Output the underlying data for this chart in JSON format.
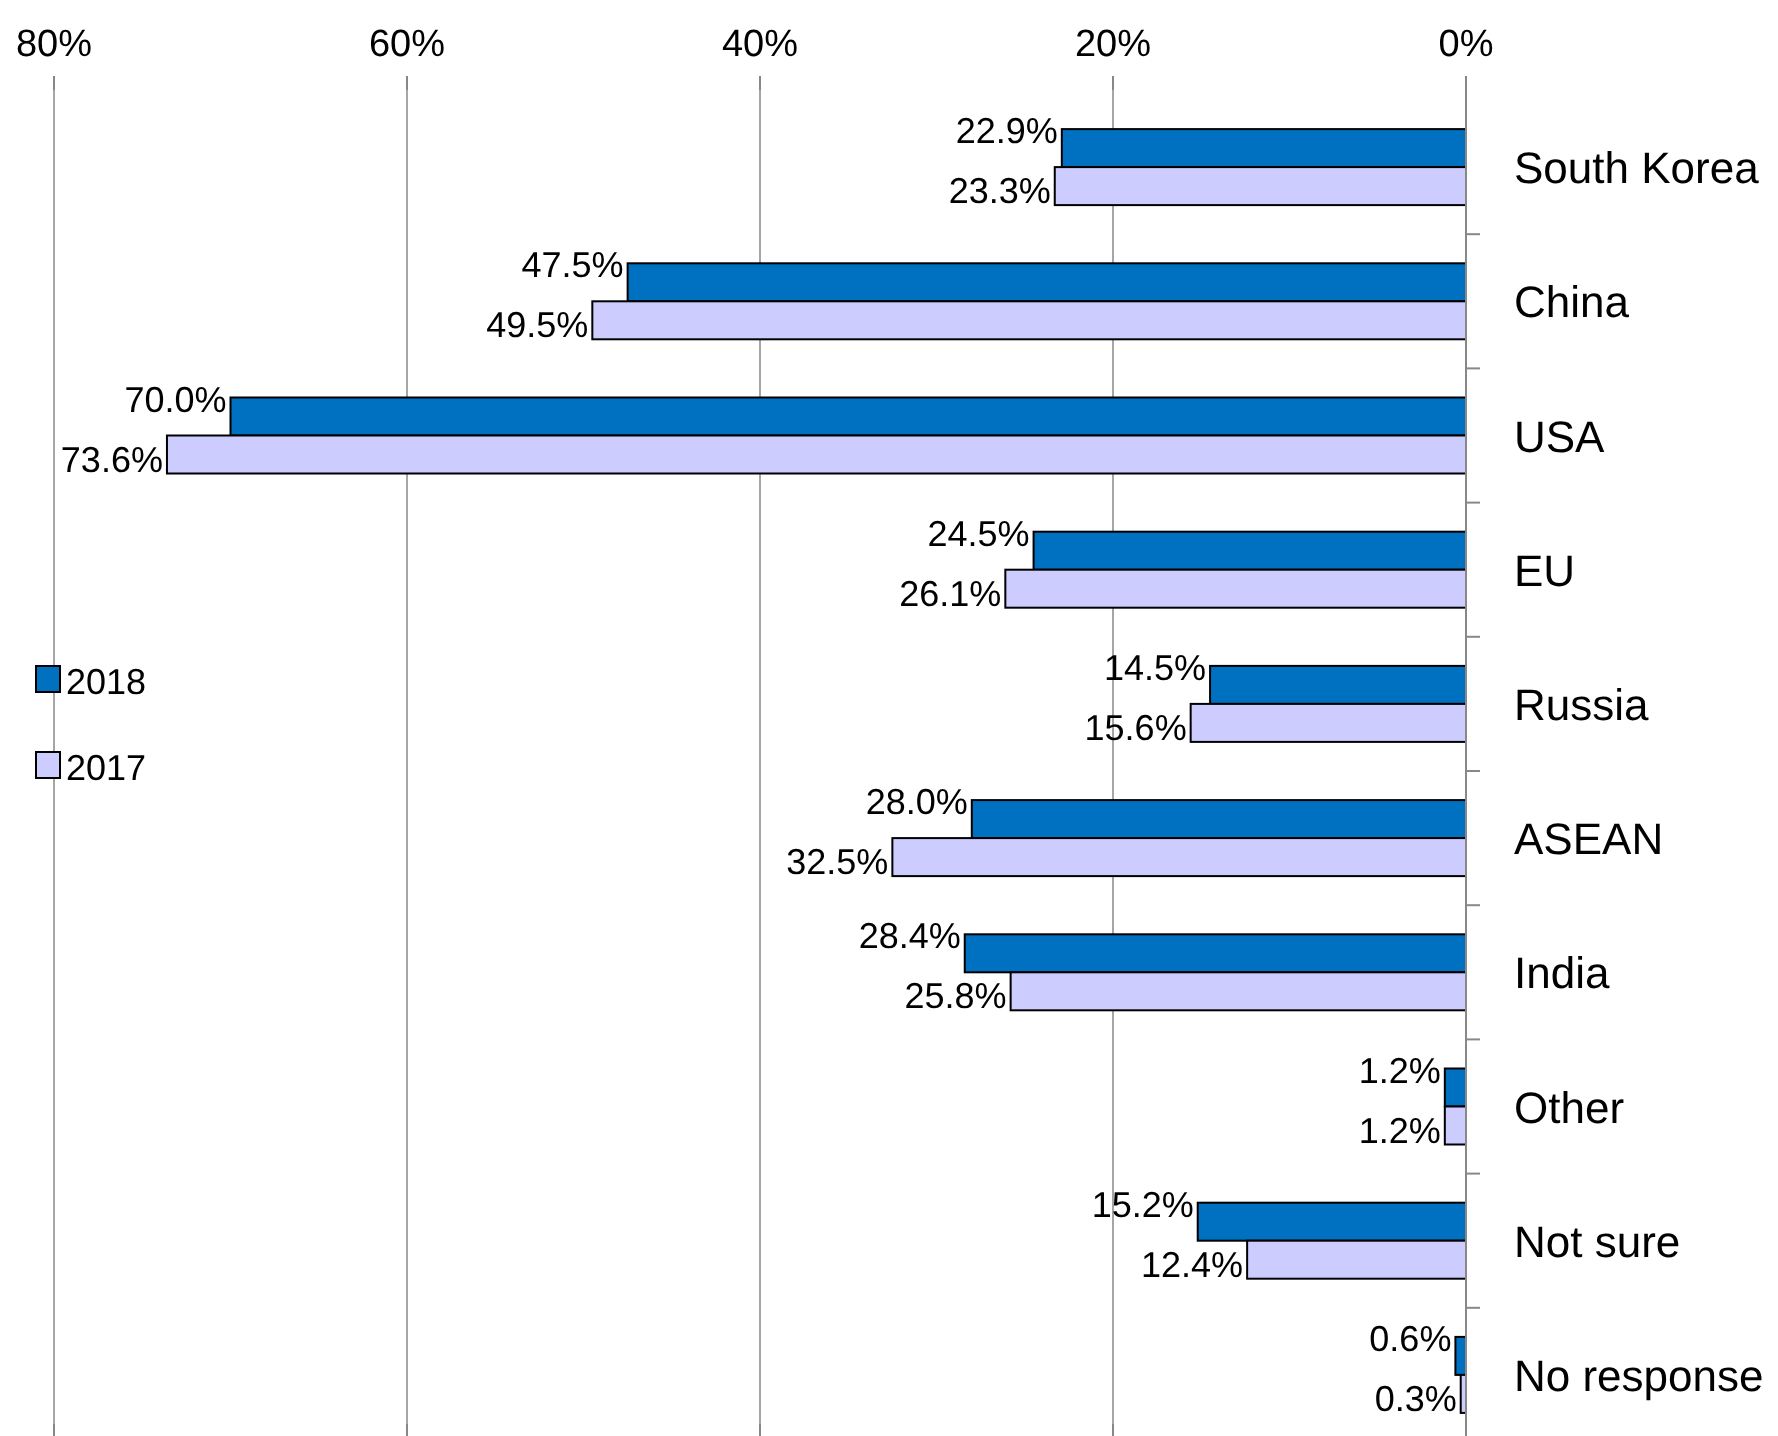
{
  "chart_data": {
    "type": "bar",
    "orientation": "horizontal",
    "categories": [
      "South Korea",
      "China",
      "USA",
      "EU",
      "Russia",
      "ASEAN",
      "India",
      "Other",
      "Not sure",
      "No response"
    ],
    "series": [
      {
        "name": "2018",
        "color": "#0070c0",
        "values": [
          22.9,
          47.5,
          70.0,
          24.5,
          14.5,
          28.0,
          28.4,
          1.2,
          15.2,
          0.6
        ],
        "value_labels": [
          "22.9%",
          "47.5%",
          "70.0%",
          "24.5%",
          "14.5%",
          "28.0%",
          "28.4%",
          "1.2%",
          "15.2%",
          "0.6%"
        ]
      },
      {
        "name": "2017",
        "color": "#ccccff",
        "values": [
          23.3,
          49.5,
          73.6,
          26.1,
          15.6,
          32.5,
          25.8,
          1.2,
          12.4,
          0.3
        ],
        "value_labels": [
          "23.3%",
          "49.5%",
          "73.6%",
          "26.1%",
          "15.6%",
          "32.5%",
          "25.8%",
          "1.2%",
          "12.4%",
          "0.3%"
        ]
      }
    ],
    "xlim": [
      80,
      0
    ],
    "xticks": [
      {
        "value": 80,
        "label": "80%"
      },
      {
        "value": 60,
        "label": "60%"
      },
      {
        "value": 40,
        "label": "40%"
      },
      {
        "value": 20,
        "label": "20%"
      },
      {
        "value": 0,
        "label": "0%"
      }
    ],
    "grid": "x",
    "legend": "left"
  }
}
